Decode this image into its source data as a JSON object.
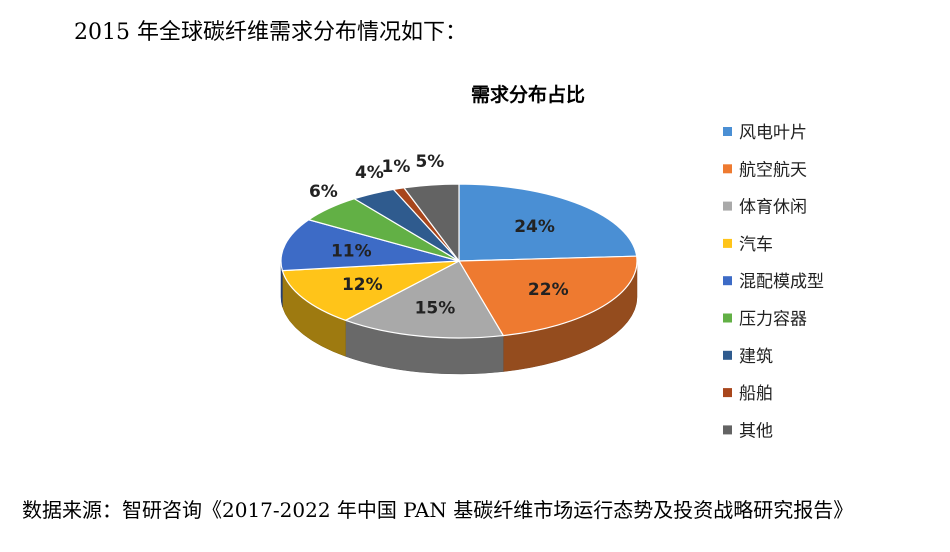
{
  "heading": "2015 年全球碳纤维需求分布情况如下：",
  "source": "数据来源：智研咨询《2017-2022 年中国 PAN 基碳纤维市场运行态势及投资战略研究报告》",
  "chart_data": {
    "type": "pie",
    "title": "需求分布占比",
    "legend_position": "right",
    "categories": [
      "风电叶片",
      "航空航天",
      "体育休闲",
      "汽车",
      "混配模成型",
      "压力容器",
      "建筑",
      "船舶",
      "其他"
    ],
    "values": [
      24,
      22,
      15,
      12,
      11,
      6,
      4,
      1,
      5
    ],
    "labels": [
      "24%",
      "22%",
      "15%",
      "12%",
      "11%",
      "6%",
      "4%",
      "1%",
      "5%"
    ],
    "colors": [
      "#4A8FD4",
      "#EE7A30",
      "#A9A9A9",
      "#FFC419",
      "#3D6BC6",
      "#62B045",
      "#2F5B8E",
      "#A8461C",
      "#636363"
    ]
  }
}
